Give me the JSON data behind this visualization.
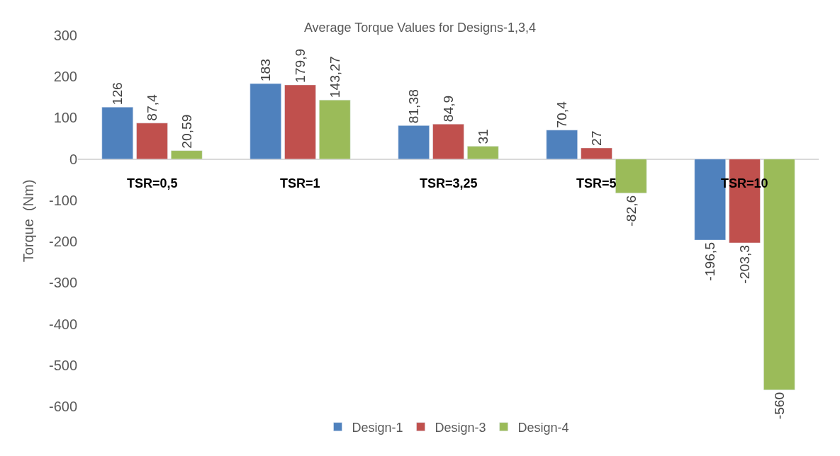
{
  "chart_data": {
    "type": "bar",
    "title": "Average Torque Values for Designs-1,3,4",
    "ylabel": "Torque  (Nm)",
    "categories": [
      "TSR=0,5",
      "TSR=1",
      "TSR=3,25",
      "TSR=5",
      "TSR=10"
    ],
    "series": [
      {
        "name": "Design-1",
        "color": "#4f81bd",
        "values": [
          126,
          183,
          81.38,
          70.4,
          -196.5
        ],
        "value_labels": [
          "126",
          "183",
          "81,38",
          "70,4",
          "-196,5"
        ]
      },
      {
        "name": "Design-3",
        "color": "#c0504d",
        "values": [
          87.4,
          179.9,
          84.9,
          27,
          -203.3
        ],
        "value_labels": [
          "87,4",
          "179,9",
          "84,9",
          "27",
          "-203,3"
        ]
      },
      {
        "name": "Design-4",
        "color": "#9bbb59",
        "values": [
          20.59,
          143.27,
          31,
          -82.6,
          -560
        ],
        "value_labels": [
          "20,59",
          "143,27",
          "31",
          "-82,6",
          "-560"
        ]
      }
    ],
    "ylim": [
      -600,
      300
    ],
    "yticks": [
      -600,
      -500,
      -400,
      -300,
      -200,
      -100,
      0,
      100,
      200,
      300
    ],
    "legend": "bottom"
  }
}
